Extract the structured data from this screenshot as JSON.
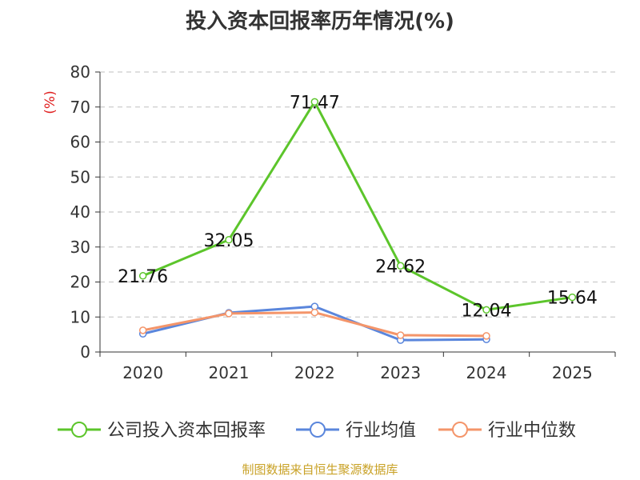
{
  "chart_data": {
    "type": "line",
    "title": "投入资本回报率历年情况(%)",
    "ylabel": "(%)",
    "xlabel": "",
    "categories": [
      "2020",
      "2021",
      "2022",
      "2023",
      "2024",
      "2025"
    ],
    "ylim": [
      0,
      80
    ],
    "yticks": [
      0,
      10,
      20,
      30,
      40,
      50,
      60,
      70,
      80
    ],
    "grid": true,
    "legend_position": "bottom",
    "series": [
      {
        "name": "公司投入资本回报率",
        "color": "#5cc52b",
        "values": [
          21.76,
          32.05,
          71.47,
          24.62,
          12.04,
          15.64
        ],
        "labels": [
          "21.76",
          "32.05",
          "71.47",
          "24.62",
          "12.04",
          "15.64"
        ]
      },
      {
        "name": "行业均值",
        "color": "#5a86dc",
        "values": [
          5.2,
          11.2,
          13.0,
          3.4,
          3.6,
          null
        ]
      },
      {
        "name": "行业中位数",
        "color": "#f4956a",
        "values": [
          6.2,
          11.0,
          11.3,
          4.8,
          4.6,
          null
        ]
      }
    ]
  },
  "source": {
    "text": "制图数据来自恒生聚源数据库",
    "color": "#c9a227"
  },
  "colors": {
    "axis": "#333333",
    "grid": "#cccccc",
    "ylabel": "#e02020"
  }
}
